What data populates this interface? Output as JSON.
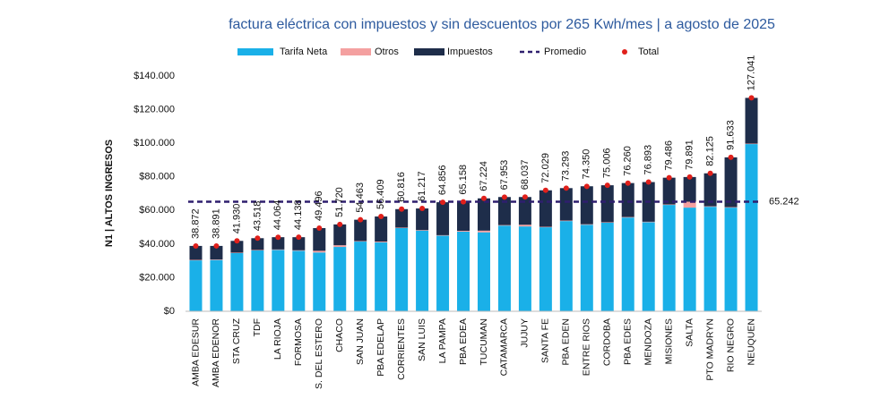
{
  "chart_data": {
    "type": "stacked_bar",
    "title": "factura eléctrica con impuestos y sin descuentos por 265 Kwh/mes | a agosto de 2025",
    "y_label": "N1 | ALTOS INGRESOS",
    "categories": [
      "AMBA EDESUR",
      "AMBA EDENOR",
      "STA CRUZ",
      "TDF",
      "LA RIOJA",
      "FORMOSA",
      "S. DEL ESTERO",
      "CHACO",
      "SAN JUAN",
      "PBA EDELAP",
      "CORRIENTES",
      "SAN LUIS",
      "LA PAMPA",
      "PBA EDEA",
      "TUCUMAN",
      "CATAMARCA",
      "JUJUY",
      "SANTA FE",
      "PBA EDEN",
      "ENTRE RIOS",
      "CORDOBA",
      "PBA EDES",
      "MENDOZA",
      "MISIONES",
      "SALTA",
      "PTO MADRYN",
      "RIO NEGRO",
      "NEUQUEN"
    ],
    "series": [
      {
        "name": "Tarifa Neta",
        "color": "#1ab0e8",
        "values": [
          30300,
          30500,
          34600,
          36200,
          36500,
          36000,
          35000,
          38300,
          41500,
          41000,
          49500,
          48000,
          45000,
          47400,
          47000,
          51000,
          50500,
          50000,
          53700,
          51500,
          52700,
          55800,
          53000,
          63300,
          61700,
          62200,
          61700,
          99500
        ]
      },
      {
        "name": "Otros",
        "color": "#f4a0a0",
        "values": [
          300,
          300,
          300,
          300,
          300,
          300,
          1000,
          1000,
          300,
          500,
          300,
          300,
          300,
          500,
          1000,
          300,
          1000,
          300,
          300,
          300,
          300,
          300,
          300,
          300,
          3500,
          300,
          300,
          300
        ]
      },
      {
        "name": "Impuestos",
        "color": "#1e2d4a",
        "values": [
          8300,
          8100,
          7000,
          7000,
          7300,
          7800,
          13500,
          12400,
          12700,
          14900,
          11000,
          12900,
          19600,
          17300,
          19200,
          16700,
          16500,
          21700,
          19300,
          22600,
          22000,
          20200,
          23600,
          15900,
          14700,
          19600,
          29600,
          27200
        ]
      },
      {
        "name": "Total",
        "color": "#e0201b",
        "values": [
          38872,
          38891,
          41930,
          43518,
          44064,
          44138,
          49496,
          51720,
          54463,
          56409,
          60816,
          61217,
          64856,
          65158,
          67224,
          67953,
          68037,
          72029,
          73293,
          74350,
          75006,
          76260,
          76893,
          79486,
          79891,
          82125,
          91633,
          127041
        ],
        "value_labels": [
          "38.872",
          "38.891",
          "41.930",
          "43.518",
          "44.064",
          "44.138",
          "49.496",
          "51.720",
          "54.463",
          "56.409",
          "60.816",
          "61.217",
          "64.856",
          "65.158",
          "67.224",
          "67.953",
          "68.037",
          "72.029",
          "73.293",
          "74.350",
          "75.006",
          "76.260",
          "76.893",
          "79.486",
          "79.891",
          "82.125",
          "91.633",
          "127.041"
        ]
      }
    ],
    "average": {
      "name": "Promedio",
      "color": "#2e1f6e",
      "value": 65242,
      "value_label": "65.242"
    },
    "ylim": [
      0,
      140000
    ],
    "yticks": [
      {
        "value": 0,
        "label": "$0"
      },
      {
        "value": 20000,
        "label": "$20.000"
      },
      {
        "value": 40000,
        "label": "$40.000"
      },
      {
        "value": 60000,
        "label": "$60.000"
      },
      {
        "value": 80000,
        "label": "$80.000"
      },
      {
        "value": 100000,
        "label": "$100.000"
      },
      {
        "value": 120000,
        "label": "$120.000"
      },
      {
        "value": 140000,
        "label": "$140.000"
      }
    ],
    "grid": false
  }
}
